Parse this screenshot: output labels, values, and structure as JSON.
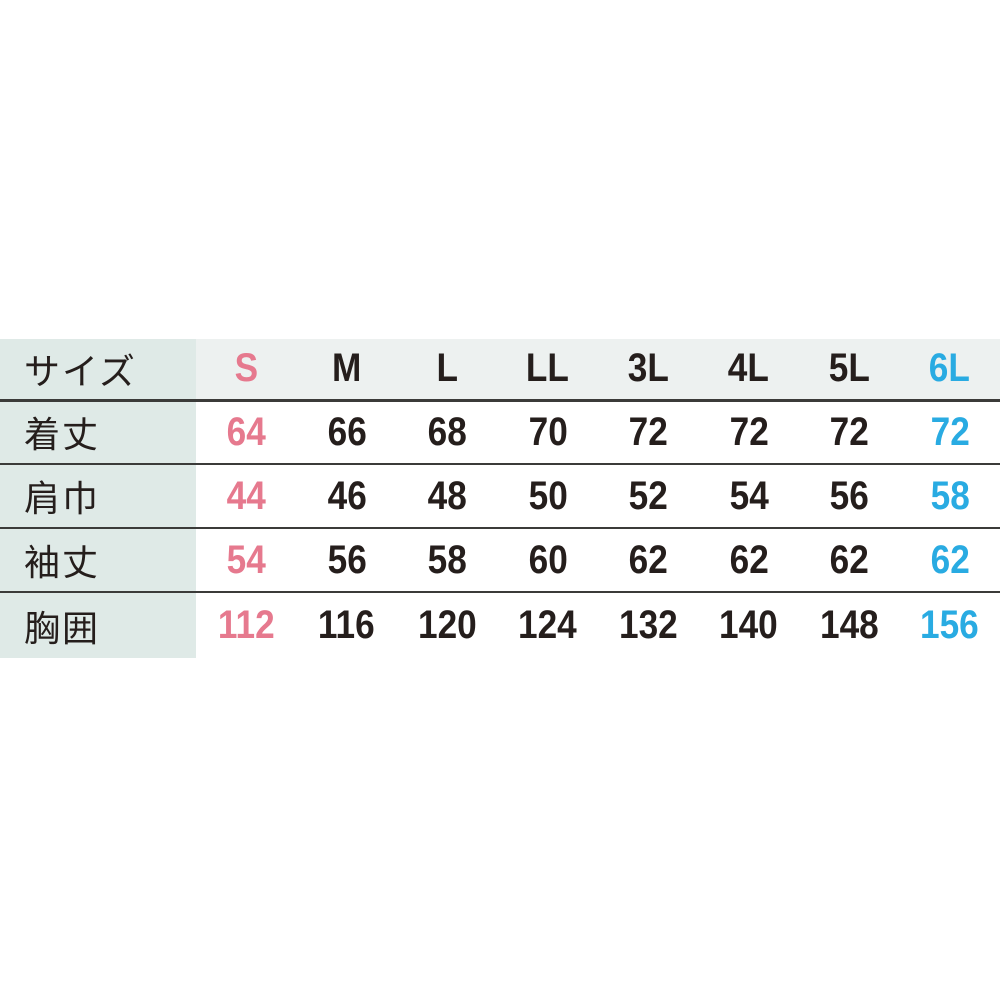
{
  "chart_data": {
    "type": "table",
    "columns": [
      "サイズ",
      "S",
      "M",
      "L",
      "LL",
      "3L",
      "4L",
      "5L",
      "6L"
    ],
    "rows": [
      {
        "label": "着丈",
        "values": [
          64,
          66,
          68,
          70,
          72,
          72,
          72,
          72
        ]
      },
      {
        "label": "肩巾",
        "values": [
          44,
          46,
          48,
          50,
          52,
          54,
          56,
          58
        ]
      },
      {
        "label": "袖丈",
        "values": [
          54,
          56,
          58,
          60,
          62,
          62,
          62,
          62
        ]
      },
      {
        "label": "胸囲",
        "values": [
          112,
          116,
          120,
          124,
          132,
          140,
          148,
          156
        ]
      }
    ],
    "layout_hints": {
      "highlighted_first_column": "S",
      "highlighted_last_column": "6L",
      "grid": "horizontal-dividers-only"
    }
  },
  "colors": {
    "accent_pink": "#E6798E",
    "accent_cyan": "#29ABE2",
    "text_dark": "#251E1C",
    "label_column_bg": "#DFEAE7",
    "header_row_bg": "#EDF1F0",
    "divider": "#3B3B39",
    "page_bg": "#FFFFFF"
  }
}
